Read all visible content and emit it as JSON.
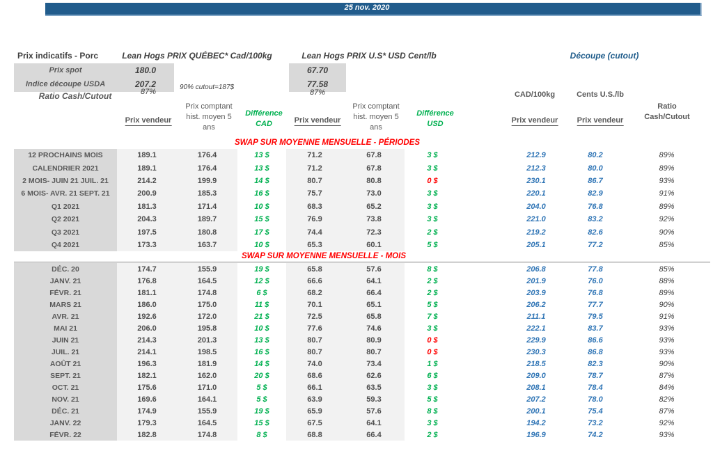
{
  "titlebar": {
    "date": "25 nov. 2020"
  },
  "colors": {
    "header_bar_blue": "#215c8c",
    "title_blue": "#1f5c8b",
    "cutout_value_blue": "#2e74b5",
    "positive_green": "#00b050",
    "negative_red": "#ff0000",
    "section_header_red": "#ff0000",
    "label_column_gray": "#d9d9d9",
    "value_column_gray": "#f2f2f2"
  },
  "header": {
    "left_title": "Prix indicatifs - Porc",
    "quebec_title": "Lean Hogs PRIX QUÉBEC* Cad/100kg",
    "us_title": "Lean Hogs PRIX U.S* USD Cent/lb",
    "cutout_title": "Découpe (cutout)",
    "spot_label": "Prix spot",
    "spot_quebec": "180.0",
    "spot_us": "67.70",
    "usda_label": "Indice découpe USDA",
    "usda_quebec": "207.2",
    "usda_us": "77.58",
    "cutout_note": "90% cutout=187$",
    "ratio_label": "Ratio Cash/Cutout",
    "ratio_quebec": "87%",
    "ratio_us": "87%"
  },
  "columns": {
    "prix_vendeur": "Prix vendeur",
    "hist_moyen": "Prix comptant hist. moyen 5 ans",
    "diff_cad": "Différence CAD",
    "diff_usd": "Différence USD",
    "cutout_cad_unit": "CAD/100kg",
    "cutout_us_unit": "Cents U.S./lb",
    "ratio_header": "Ratio Cash/Cutout"
  },
  "sections": [
    {
      "title": "SWAP SUR MOYENNE MENSUELLE - PÉRIODES",
      "rows": [
        {
          "label": "12 PROCHAINS MOIS",
          "pv_cad": "189.1",
          "hist_cad": "176.4",
          "diff_cad": "13 $",
          "pv_usd": "71.2",
          "hist_usd": "67.8",
          "diff_usd": "3 $",
          "cut_cad": "212.9",
          "cut_usd": "80.2",
          "ratio": "89%"
        },
        {
          "label": "CALENDRIER 2021",
          "pv_cad": "189.1",
          "hist_cad": "176.4",
          "diff_cad": "13 $",
          "pv_usd": "71.2",
          "hist_usd": "67.8",
          "diff_usd": "3 $",
          "cut_cad": "212.3",
          "cut_usd": "80.0",
          "ratio": "89%"
        },
        {
          "label": "2 MOIS- JUIN 21 JUIL. 21",
          "pv_cad": "214.2",
          "hist_cad": "199.9",
          "diff_cad": "14 $",
          "pv_usd": "80.7",
          "hist_usd": "80.8",
          "diff_usd": "0 $",
          "diff_usd_red": true,
          "cut_cad": "230.1",
          "cut_usd": "86.7",
          "ratio": "93%"
        },
        {
          "label": "6 MOIS- AVR. 21 SEPT. 21",
          "pv_cad": "200.9",
          "hist_cad": "185.3",
          "diff_cad": "16 $",
          "pv_usd": "75.7",
          "hist_usd": "73.0",
          "diff_usd": "3 $",
          "cut_cad": "220.1",
          "cut_usd": "82.9",
          "ratio": "91%"
        },
        {
          "label": "Q1 2021",
          "pv_cad": "181.3",
          "hist_cad": "171.4",
          "diff_cad": "10 $",
          "pv_usd": "68.3",
          "hist_usd": "65.2",
          "diff_usd": "3 $",
          "cut_cad": "204.0",
          "cut_usd": "76.8",
          "ratio": "89%"
        },
        {
          "label": "Q2 2021",
          "pv_cad": "204.3",
          "hist_cad": "189.7",
          "diff_cad": "15 $",
          "pv_usd": "76.9",
          "hist_usd": "73.8",
          "diff_usd": "3 $",
          "cut_cad": "221.0",
          "cut_usd": "83.2",
          "ratio": "92%"
        },
        {
          "label": "Q3 2021",
          "pv_cad": "197.5",
          "hist_cad": "180.8",
          "diff_cad": "17 $",
          "pv_usd": "74.4",
          "hist_usd": "72.3",
          "diff_usd": "2 $",
          "cut_cad": "219.2",
          "cut_usd": "82.6",
          "ratio": "90%"
        },
        {
          "label": "Q4 2021",
          "pv_cad": "173.3",
          "hist_cad": "163.7",
          "diff_cad": "10 $",
          "pv_usd": "65.3",
          "hist_usd": "60.1",
          "diff_usd": "5 $",
          "cut_cad": "205.1",
          "cut_usd": "77.2",
          "ratio": "85%"
        }
      ]
    },
    {
      "title": "SWAP SUR MOYENNE MENSUELLE - MOIS",
      "rows": [
        {
          "label": "DÉC. 20",
          "pv_cad": "174.7",
          "hist_cad": "155.9",
          "diff_cad": "19 $",
          "pv_usd": "65.8",
          "hist_usd": "57.6",
          "diff_usd": "8 $",
          "cut_cad": "206.8",
          "cut_usd": "77.8",
          "ratio": "85%"
        },
        {
          "label": "JANV. 21",
          "pv_cad": "176.8",
          "hist_cad": "164.5",
          "diff_cad": "12 $",
          "pv_usd": "66.6",
          "hist_usd": "64.1",
          "diff_usd": "2 $",
          "cut_cad": "201.9",
          "cut_usd": "76.0",
          "ratio": "88%"
        },
        {
          "label": "FÉVR. 21",
          "pv_cad": "181.1",
          "hist_cad": "174.8",
          "diff_cad": "6 $",
          "pv_usd": "68.2",
          "hist_usd": "66.4",
          "diff_usd": "2 $",
          "cut_cad": "203.9",
          "cut_usd": "76.8",
          "ratio": "89%"
        },
        {
          "label": "MARS 21",
          "pv_cad": "186.0",
          "hist_cad": "175.0",
          "diff_cad": "11 $",
          "pv_usd": "70.1",
          "hist_usd": "65.1",
          "diff_usd": "5 $",
          "cut_cad": "206.2",
          "cut_usd": "77.7",
          "ratio": "90%"
        },
        {
          "label": "AVR. 21",
          "pv_cad": "192.6",
          "hist_cad": "172.0",
          "diff_cad": "21 $",
          "pv_usd": "72.5",
          "hist_usd": "65.8",
          "diff_usd": "7 $",
          "cut_cad": "211.1",
          "cut_usd": "79.5",
          "ratio": "91%"
        },
        {
          "label": "MAI 21",
          "pv_cad": "206.0",
          "hist_cad": "195.8",
          "diff_cad": "10 $",
          "pv_usd": "77.6",
          "hist_usd": "74.6",
          "diff_usd": "3 $",
          "cut_cad": "222.1",
          "cut_usd": "83.7",
          "ratio": "93%"
        },
        {
          "label": "JUIN 21",
          "pv_cad": "214.3",
          "hist_cad": "201.3",
          "diff_cad": "13 $",
          "pv_usd": "80.7",
          "hist_usd": "80.9",
          "diff_usd": "0 $",
          "diff_usd_red": true,
          "cut_cad": "229.9",
          "cut_usd": "86.6",
          "ratio": "93%"
        },
        {
          "label": "JUIL. 21",
          "pv_cad": "214.1",
          "hist_cad": "198.5",
          "diff_cad": "16 $",
          "pv_usd": "80.7",
          "hist_usd": "80.7",
          "diff_usd": "0 $",
          "diff_usd_red": true,
          "cut_cad": "230.3",
          "cut_usd": "86.8",
          "ratio": "93%"
        },
        {
          "label": "AOÛT 21",
          "pv_cad": "196.3",
          "hist_cad": "181.9",
          "diff_cad": "14 $",
          "pv_usd": "74.0",
          "hist_usd": "73.4",
          "diff_usd": "1 $",
          "cut_cad": "218.5",
          "cut_usd": "82.3",
          "ratio": "90%"
        },
        {
          "label": "SEPT. 21",
          "pv_cad": "182.1",
          "hist_cad": "162.0",
          "diff_cad": "20 $",
          "pv_usd": "68.6",
          "hist_usd": "62.6",
          "diff_usd": "6 $",
          "cut_cad": "209.0",
          "cut_usd": "78.7",
          "ratio": "87%"
        },
        {
          "label": "OCT. 21",
          "pv_cad": "175.6",
          "hist_cad": "171.0",
          "diff_cad": "5 $",
          "pv_usd": "66.1",
          "hist_usd": "63.5",
          "diff_usd": "3 $",
          "cut_cad": "208.1",
          "cut_usd": "78.4",
          "ratio": "84%"
        },
        {
          "label": "NOV. 21",
          "pv_cad": "169.6",
          "hist_cad": "164.1",
          "diff_cad": "5 $",
          "pv_usd": "63.9",
          "hist_usd": "59.3",
          "diff_usd": "5 $",
          "cut_cad": "207.2",
          "cut_usd": "78.0",
          "ratio": "82%"
        },
        {
          "label": "DÉC. 21",
          "pv_cad": "174.9",
          "hist_cad": "155.9",
          "diff_cad": "19 $",
          "pv_usd": "65.9",
          "hist_usd": "57.6",
          "diff_usd": "8 $",
          "cut_cad": "200.1",
          "cut_usd": "75.4",
          "ratio": "87%"
        },
        {
          "label": "JANV. 22",
          "pv_cad": "179.3",
          "hist_cad": "164.5",
          "diff_cad": "15 $",
          "pv_usd": "67.5",
          "hist_usd": "64.1",
          "diff_usd": "3 $",
          "cut_cad": "194.2",
          "cut_usd": "73.2",
          "ratio": "92%"
        },
        {
          "label": "FÉVR. 22",
          "pv_cad": "182.8",
          "hist_cad": "174.8",
          "diff_cad": "8 $",
          "pv_usd": "68.8",
          "hist_usd": "66.4",
          "diff_usd": "2 $",
          "cut_cad": "196.9",
          "cut_usd": "74.2",
          "ratio": "93%"
        }
      ]
    }
  ]
}
